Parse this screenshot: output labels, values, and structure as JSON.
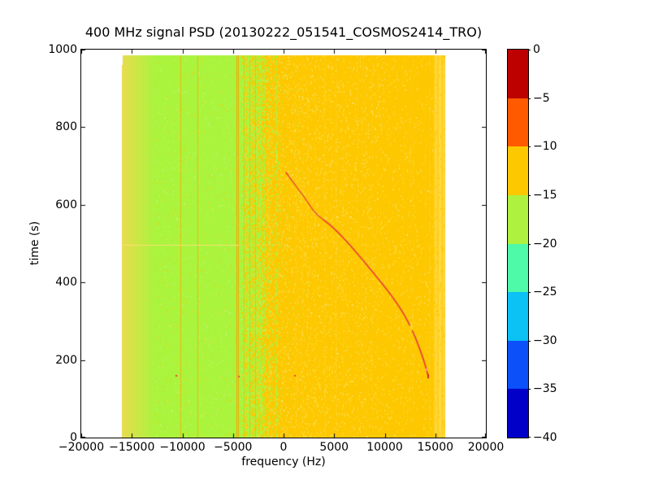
{
  "title": "400 MHz signal PSD (20130222_051541_COSMOS2414_TRO)",
  "chart_data": {
    "type": "heatmap",
    "title": "400 MHz signal PSD (20130222_051541_COSMOS2414_TRO)",
    "xlabel": "frequency (Hz)",
    "ylabel": "time (s)",
    "xlim": [
      -20000,
      20000
    ],
    "ylim": [
      0,
      1000
    ],
    "xticks": [
      -20000,
      -15000,
      -10000,
      -5000,
      0,
      5000,
      10000,
      15000,
      20000
    ],
    "xtick_labels": [
      "−20000",
      "−15000",
      "−10000",
      "−5000",
      "0",
      "5000",
      "10000",
      "15000",
      "20000"
    ],
    "yticks": [
      0,
      200,
      400,
      600,
      800,
      1000
    ],
    "ytick_labels": [
      "0",
      "200",
      "400",
      "600",
      "800",
      "1000"
    ],
    "grid": false,
    "background_outside_data": "#ffffff",
    "data_extent": {
      "freq_hz": [
        -16000,
        16000
      ],
      "time_s": [
        0,
        985
      ]
    },
    "regions": [
      {
        "name": "left-edge-band",
        "freq": [
          -16000,
          -12800
        ],
        "colors": [
          "#e9dc4d",
          "#aaf43e"
        ],
        "desc": "yellow fading into green with horizontal noise",
        "approx_level_db": -15
      },
      {
        "name": "green-band",
        "freq": [
          -12800,
          -4200
        ],
        "color": "#aaf43e",
        "approx_level_db": -17
      },
      {
        "name": "transition-stripes",
        "freq": [
          -4200,
          -300
        ],
        "colors": [
          "#aaf43e",
          "#fdc800"
        ],
        "desc": "vertical stripes, green density decreasing to the right"
      },
      {
        "name": "amber-band",
        "freq": [
          -300,
          14800
        ],
        "color": "#fdc800",
        "approx_level_db": -12
      },
      {
        "name": "right-edge-band",
        "freq": [
          14800,
          16000
        ],
        "colors": [
          "#fdc800",
          "#ffe36b"
        ],
        "desc": "lighter speckled vertical stripes"
      }
    ],
    "vertical_lines": [
      {
        "freq": -10200,
        "color": "#fbab05",
        "alpha": 0.8
      },
      {
        "freq": -8500,
        "color": "#fbab05",
        "alpha": 0.8
      },
      {
        "freq": -4660,
        "color": "#fa9b00",
        "alpha": 0.95
      },
      {
        "freq": -4470,
        "color": "#fa9b00",
        "alpha": 0.9
      },
      {
        "freq": -3900,
        "color": "#f7ab00",
        "alpha": 0.5
      },
      {
        "freq": -3350,
        "color": "#f7ab00",
        "alpha": 0.5
      },
      {
        "freq": -2850,
        "color": "#f7ab00",
        "alpha": 0.5
      }
    ],
    "horizontal_line": {
      "time": 497,
      "freq": [
        -16000,
        -4400
      ],
      "faint_until_freq": -300,
      "color": "#ffe070"
    },
    "doppler_curve": {
      "desc": "satellite pass Doppler S-curve, strong (red, ~0 to -5 dB)",
      "color": "#e8403a",
      "points_freq_time": [
        [
          250,
          683
        ],
        [
          900,
          660
        ],
        [
          2088,
          618
        ],
        [
          3200,
          578
        ],
        [
          4900,
          541
        ],
        [
          6667,
          493
        ],
        [
          8514,
          436
        ],
        [
          10281,
          379
        ],
        [
          11727,
          325
        ],
        [
          12771,
          273
        ],
        [
          13494,
          226
        ],
        [
          13976,
          189
        ],
        [
          14297,
          159
        ]
      ],
      "faint_time_range": [
        560,
        690
      ],
      "gap_time_range": [
        274,
        288
      ],
      "end_blob_color": "#d42222",
      "pink_highlight_color": "#ff8f9f"
    },
    "specks": [
      {
        "freq": -10700,
        "time": 161,
        "color": "#f04030"
      },
      {
        "freq": -4480,
        "time": 160,
        "color": "#f04030"
      },
      {
        "freq": 1050,
        "time": 162,
        "color": "#f04030"
      }
    ],
    "colorbar": {
      "tick_labels": [
        "0",
        "−5",
        "−10",
        "−15",
        "−20",
        "−25",
        "−30",
        "−35",
        "−40"
      ],
      "tick_values": [
        0,
        -5,
        -10,
        -15,
        -20,
        -25,
        -30,
        -35,
        -40
      ],
      "segments": [
        {
          "range": [
            0,
            -5
          ],
          "color": "#bd0000"
        },
        {
          "range": [
            -5,
            -10
          ],
          "color": "#ff5a00"
        },
        {
          "range": [
            -10,
            -15
          ],
          "color": "#fdc800"
        },
        {
          "range": [
            -15,
            -20
          ],
          "color": "#aef23f"
        },
        {
          "range": [
            -20,
            -25
          ],
          "color": "#4ef9a8"
        },
        {
          "range": [
            -25,
            -30
          ],
          "color": "#0cc1f4"
        },
        {
          "range": [
            -30,
            -35
          ],
          "color": "#0c50fa"
        },
        {
          "range": [
            -35,
            -40
          ],
          "color": "#0000c8"
        }
      ]
    }
  }
}
